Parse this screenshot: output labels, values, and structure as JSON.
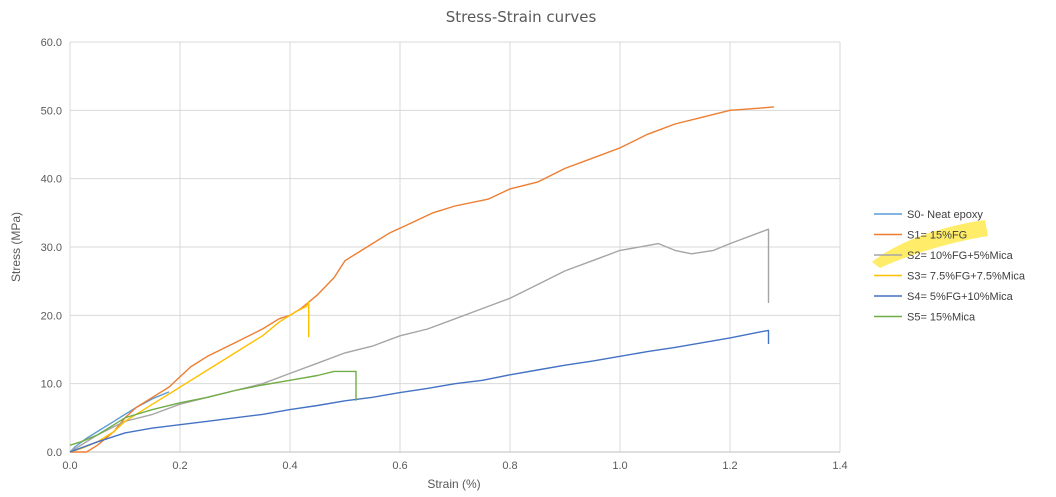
{
  "chart_data": {
    "type": "line",
    "title": "Stress-Strain curves",
    "xlabel": "Strain (%)",
    "ylabel": "Stress (MPa)",
    "xlim": [
      0,
      1.4
    ],
    "ylim": [
      0,
      60
    ],
    "x_ticks": [
      "0.0",
      "0.2",
      "0.4",
      "0.6",
      "0.8",
      "1.0",
      "1.2",
      "1.4"
    ],
    "y_ticks": [
      "0.0",
      "10.0",
      "20.0",
      "30.0",
      "40.0",
      "50.0",
      "60.0"
    ],
    "grid": true,
    "legend_position": "right",
    "legend_highlight_color": "#ffe94d",
    "series": [
      {
        "name": "S0- Neat epoxy",
        "color": "#5b9bd5",
        "points": [
          [
            0,
            0
          ],
          [
            0.01,
            0.8
          ],
          [
            0.03,
            2
          ],
          [
            0.05,
            3
          ],
          [
            0.08,
            4.5
          ],
          [
            0.1,
            5.5
          ],
          [
            0.12,
            6.5
          ],
          [
            0.15,
            7.8
          ],
          [
            0.18,
            8.8
          ]
        ]
      },
      {
        "name": "S1= 15%FG",
        "color": "#ed7d31",
        "points": [
          [
            0,
            0
          ],
          [
            0.03,
            0
          ],
          [
            0.05,
            1
          ],
          [
            0.08,
            3
          ],
          [
            0.1,
            5
          ],
          [
            0.12,
            6.5
          ],
          [
            0.15,
            8
          ],
          [
            0.18,
            9.5
          ],
          [
            0.2,
            11
          ],
          [
            0.22,
            12.5
          ],
          [
            0.25,
            14
          ],
          [
            0.3,
            16
          ],
          [
            0.35,
            18
          ],
          [
            0.38,
            19.5
          ],
          [
            0.4,
            20
          ],
          [
            0.42,
            21
          ],
          [
            0.45,
            23
          ],
          [
            0.48,
            25.5
          ],
          [
            0.5,
            28
          ],
          [
            0.54,
            30
          ],
          [
            0.58,
            32
          ],
          [
            0.62,
            33.5
          ],
          [
            0.66,
            35
          ],
          [
            0.7,
            36
          ],
          [
            0.76,
            37
          ],
          [
            0.8,
            38.5
          ],
          [
            0.85,
            39.5
          ],
          [
            0.9,
            41.5
          ],
          [
            0.95,
            43
          ],
          [
            1.0,
            44.5
          ],
          [
            1.05,
            46.5
          ],
          [
            1.1,
            48
          ],
          [
            1.15,
            49
          ],
          [
            1.2,
            50
          ],
          [
            1.25,
            50.3
          ],
          [
            1.28,
            50.5
          ]
        ]
      },
      {
        "name": "S2= 10%FG+5%Mica",
        "color": "#a5a5a5",
        "points": [
          [
            0,
            0
          ],
          [
            0.05,
            2.5
          ],
          [
            0.1,
            4.5
          ],
          [
            0.15,
            5.5
          ],
          [
            0.2,
            7
          ],
          [
            0.25,
            8
          ],
          [
            0.3,
            9
          ],
          [
            0.35,
            10
          ],
          [
            0.4,
            11.5
          ],
          [
            0.45,
            13
          ],
          [
            0.5,
            14.5
          ],
          [
            0.55,
            15.5
          ],
          [
            0.6,
            17
          ],
          [
            0.65,
            18
          ],
          [
            0.7,
            19.5
          ],
          [
            0.75,
            21
          ],
          [
            0.8,
            22.5
          ],
          [
            0.85,
            24.5
          ],
          [
            0.9,
            26.5
          ],
          [
            0.95,
            28
          ],
          [
            1.0,
            29.5
          ],
          [
            1.05,
            30.2
          ],
          [
            1.07,
            30.5
          ],
          [
            1.1,
            29.5
          ],
          [
            1.13,
            29
          ],
          [
            1.17,
            29.5
          ],
          [
            1.2,
            30.5
          ],
          [
            1.25,
            32
          ],
          [
            1.27,
            32.6
          ],
          [
            1.27,
            21.8
          ]
        ]
      },
      {
        "name": "S3= 7.5%FG+7.5%Mica",
        "color": "#ffc000",
        "points": [
          [
            0,
            0
          ],
          [
            0.02,
            0.5
          ],
          [
            0.05,
            1.5
          ],
          [
            0.08,
            3
          ],
          [
            0.1,
            4.5
          ],
          [
            0.15,
            7
          ],
          [
            0.2,
            9.5
          ],
          [
            0.25,
            12
          ],
          [
            0.3,
            14.5
          ],
          [
            0.35,
            17
          ],
          [
            0.38,
            19
          ],
          [
            0.41,
            20.5
          ],
          [
            0.43,
            21.3
          ],
          [
            0.434,
            22
          ],
          [
            0.434,
            16.8
          ]
        ]
      },
      {
        "name": "S4= 5%FG+10%Mica",
        "color": "#4472c4",
        "points": [
          [
            0,
            0
          ],
          [
            0.05,
            1.5
          ],
          [
            0.1,
            2.8
          ],
          [
            0.15,
            3.5
          ],
          [
            0.2,
            4
          ],
          [
            0.25,
            4.5
          ],
          [
            0.3,
            5
          ],
          [
            0.35,
            5.5
          ],
          [
            0.4,
            6.2
          ],
          [
            0.45,
            6.8
          ],
          [
            0.5,
            7.5
          ],
          [
            0.55,
            8
          ],
          [
            0.6,
            8.7
          ],
          [
            0.65,
            9.3
          ],
          [
            0.7,
            10
          ],
          [
            0.75,
            10.5
          ],
          [
            0.8,
            11.3
          ],
          [
            0.85,
            12
          ],
          [
            0.9,
            12.7
          ],
          [
            0.95,
            13.3
          ],
          [
            1.0,
            14
          ],
          [
            1.05,
            14.7
          ],
          [
            1.1,
            15.3
          ],
          [
            1.15,
            16
          ],
          [
            1.2,
            16.7
          ],
          [
            1.25,
            17.5
          ],
          [
            1.27,
            17.8
          ],
          [
            1.27,
            15.8
          ]
        ]
      },
      {
        "name": "S5= 15%Mica",
        "color": "#70ad47",
        "points": [
          [
            0,
            1
          ],
          [
            0.02,
            1.5
          ],
          [
            0.05,
            2.5
          ],
          [
            0.08,
            4
          ],
          [
            0.1,
            5
          ],
          [
            0.15,
            6.2
          ],
          [
            0.2,
            7.2
          ],
          [
            0.25,
            8
          ],
          [
            0.3,
            9
          ],
          [
            0.35,
            9.8
          ],
          [
            0.4,
            10.5
          ],
          [
            0.45,
            11.2
          ],
          [
            0.48,
            11.8
          ],
          [
            0.52,
            11.8
          ],
          [
            0.52,
            7.5
          ]
        ]
      }
    ]
  }
}
